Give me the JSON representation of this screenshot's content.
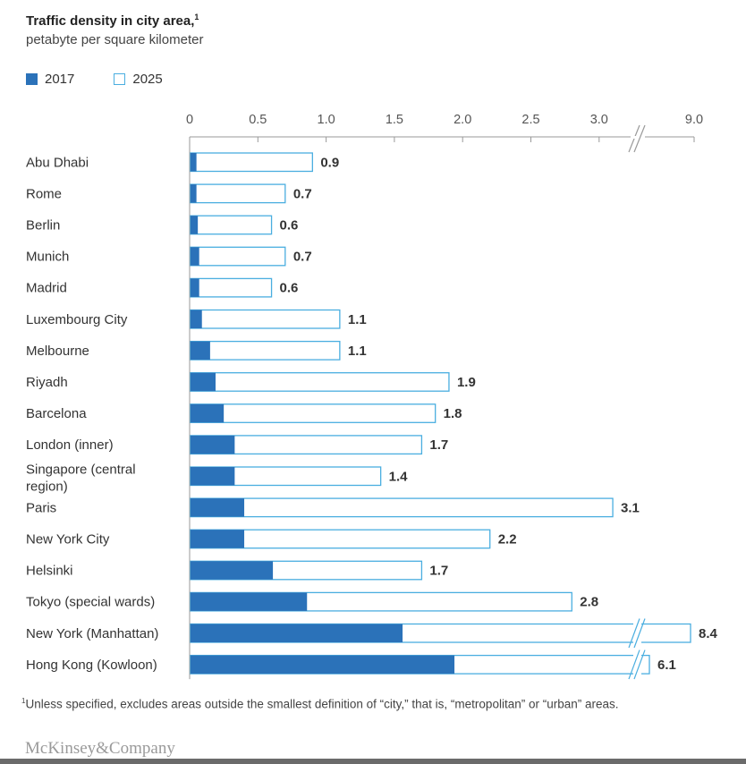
{
  "header": {
    "title": "Traffic density in city area,",
    "title_sup": "1",
    "subtitle": "petabyte per square kilometer"
  },
  "legend": [
    {
      "label": "2017",
      "style": "filled"
    },
    {
      "label": "2025",
      "style": "hollow"
    }
  ],
  "colors": {
    "series_2017": "#2b72b9",
    "series_2025_outline": "#4aaee0",
    "axis": "#999999"
  },
  "chart_data": {
    "type": "bar",
    "orientation": "horizontal",
    "axis_tick_labels": [
      "0",
      "0.5",
      "1.0",
      "1.5",
      "2.0",
      "2.5",
      "3.0",
      "9.0"
    ],
    "axis_ticks": [
      0,
      0.5,
      1.0,
      1.5,
      2.0,
      2.5,
      3.0
    ],
    "axis_break": {
      "from": 3.0,
      "to": 9.0
    },
    "xlim": [
      0,
      3.0
    ],
    "grid": false,
    "legend_position": "top-left",
    "categories": [
      "Abu Dhabi",
      "Rome",
      "Berlin",
      "Munich",
      "Madrid",
      "Luxembourg City",
      "Melbourne",
      "Riyadh",
      "Barcelona",
      "London (inner)",
      "Singapore (central region)",
      "Paris",
      "New York City",
      "Helsinki",
      "Tokyo (special wards)",
      "New York (Manhattan)",
      "Hong Kong (Kowloon)"
    ],
    "series": [
      {
        "name": "2017",
        "values": [
          0.05,
          0.05,
          0.06,
          0.07,
          0.07,
          0.09,
          0.15,
          0.19,
          0.25,
          0.33,
          0.33,
          0.4,
          0.4,
          0.61,
          0.86,
          1.56,
          1.94
        ]
      },
      {
        "name": "2025",
        "values": [
          0.9,
          0.7,
          0.6,
          0.7,
          0.6,
          1.1,
          1.1,
          1.9,
          1.8,
          1.7,
          1.4,
          3.1,
          2.2,
          1.7,
          2.8,
          8.4,
          6.1
        ]
      }
    ],
    "value_labels": [
      "0.9",
      "0.7",
      "0.6",
      "0.7",
      "0.6",
      "1.1",
      "1.1",
      "1.9",
      "1.8",
      "1.7",
      "1.4",
      "3.1",
      "2.2",
      "1.7",
      "2.8",
      "8.4",
      "6.1"
    ],
    "broken_bars": [
      "New York (Manhattan)",
      "Hong Kong (Kowloon)"
    ]
  },
  "footnote": {
    "sup": "1",
    "text": "Unless specified, excludes areas outside the smallest definition of “city,” that is, “metropolitan” or “urban” areas."
  },
  "brand": "McKinsey&Company"
}
